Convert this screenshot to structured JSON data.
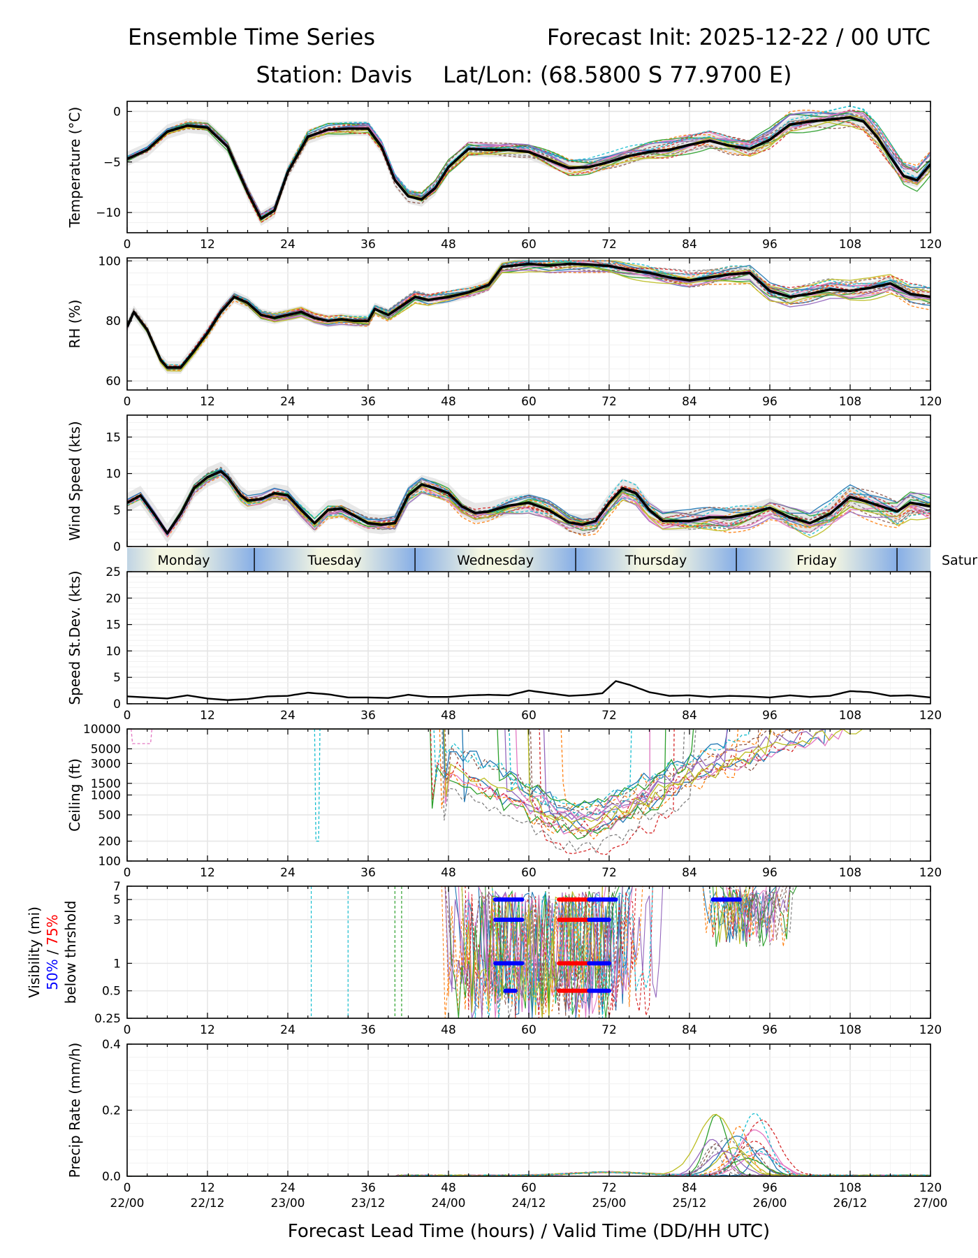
{
  "header": {
    "title_left": "Ensemble Time Series",
    "title_right": "Forecast Init: 2025-12-22 / 00 UTC",
    "station": "Station: Davis",
    "latlon": "Lat/Lon: (68.5800 S 77.9700 E)"
  },
  "xaxis": {
    "label": "Forecast Lead Time (hours) / Valid Time (DD/HH UTC)",
    "range": [
      0,
      120
    ],
    "ticks": [
      0,
      12,
      24,
      36,
      48,
      60,
      72,
      84,
      96,
      108,
      120
    ],
    "tick_labels": [
      "0",
      "12",
      "24",
      "36",
      "48",
      "60",
      "72",
      "84",
      "96",
      "108",
      "120"
    ],
    "valid_labels": [
      "22/00",
      "22/12",
      "23/00",
      "23/12",
      "24/00",
      "24/12",
      "25/00",
      "25/12",
      "26/00",
      "26/12",
      "27/00"
    ]
  },
  "day_bar": {
    "days": [
      "Monday",
      "Tuesday",
      "Wednesday",
      "Thursday",
      "Friday",
      "Saturday"
    ],
    "boundaries": [
      0,
      19,
      43,
      67,
      91,
      115,
      120
    ],
    "visible_last_label": "Satur"
  },
  "legend_colors": {
    "members": [
      "#1f77b4",
      "#ff7f0e",
      "#2ca02c",
      "#d62728",
      "#9467bd",
      "#8c564b",
      "#e377c2",
      "#7f7f7f",
      "#bcbd22",
      "#17becf"
    ],
    "mean": "#000000",
    "spread": "#d9d9d9",
    "threshold_50": "#0000ff",
    "threshold_75": "#ff0000"
  },
  "chart_data": [
    {
      "id": "temperature",
      "type": "line",
      "ylabel": "Temperature (°C)",
      "ylim": [
        -12,
        1
      ],
      "yticks": [
        -10,
        -5,
        0
      ],
      "ytick_labels": [
        "−10",
        "−5",
        "0"
      ],
      "grid": true,
      "mean": {
        "x": [
          0,
          3,
          6,
          9,
          12,
          15,
          18,
          20,
          22,
          24,
          27,
          30,
          33,
          36,
          38,
          40,
          42,
          44,
          46,
          48,
          51,
          54,
          57,
          60,
          63,
          66,
          69,
          72,
          75,
          78,
          81,
          84,
          87,
          90,
          93,
          96,
          99,
          102,
          105,
          108,
          110,
          112,
          114,
          116,
          118,
          120
        ],
        "y": [
          -4.7,
          -3.8,
          -2.0,
          -1.4,
          -1.6,
          -3.5,
          -8.0,
          -10.6,
          -9.8,
          -6.0,
          -2.5,
          -1.8,
          -1.7,
          -1.7,
          -3.5,
          -6.8,
          -8.4,
          -8.7,
          -7.6,
          -5.5,
          -3.7,
          -3.8,
          -3.8,
          -4.0,
          -4.8,
          -5.6,
          -5.5,
          -5.0,
          -4.4,
          -4.0,
          -3.8,
          -3.3,
          -2.9,
          -3.4,
          -3.7,
          -2.8,
          -1.3,
          -1.0,
          -0.8,
          -0.6,
          -1.0,
          -2.5,
          -4.5,
          -6.4,
          -6.8,
          -5.2
        ]
      },
      "members": 20,
      "member_spread": 1.2
    },
    {
      "id": "rh",
      "type": "line",
      "ylabel": "RH (%)",
      "ylim": [
        57,
        101
      ],
      "yticks": [
        60,
        80,
        100
      ],
      "ytick_labels": [
        "60",
        "80",
        "100"
      ],
      "grid": true,
      "mean": {
        "x": [
          0,
          1,
          3,
          5,
          6,
          8,
          10,
          12,
          14,
          16,
          18,
          20,
          22,
          24,
          26,
          28,
          30,
          32,
          34,
          36,
          37,
          39,
          41,
          43,
          45,
          48,
          51,
          54,
          56,
          60,
          63,
          66,
          69,
          72,
          75,
          78,
          81,
          84,
          87,
          90,
          93,
          96,
          99,
          102,
          105,
          108,
          111,
          114,
          117,
          120
        ],
        "y": [
          78,
          83,
          77,
          67,
          64.5,
          64.5,
          70,
          76,
          83,
          88,
          86,
          82,
          81,
          82,
          83,
          81,
          80,
          80.5,
          80,
          80,
          84,
          82,
          85,
          88,
          87,
          88,
          89.5,
          92,
          98,
          99,
          98.5,
          99,
          98.8,
          98.3,
          97,
          96,
          94.5,
          93.5,
          94.5,
          95.5,
          96,
          90,
          88,
          89,
          90.5,
          90,
          91,
          92.5,
          89,
          88
        ]
      },
      "members": 20,
      "member_spread": 3.5
    },
    {
      "id": "wind_speed",
      "type": "line",
      "ylabel": "Wind Speed (kts)",
      "ylim": [
        0,
        18
      ],
      "yticks": [
        0,
        5,
        10,
        15
      ],
      "ytick_labels": [
        "0",
        "5",
        "10",
        "15"
      ],
      "grid": true,
      "mean": {
        "x": [
          0,
          1,
          2,
          4,
          6,
          8,
          10,
          12,
          14,
          15,
          17,
          18,
          20,
          22,
          24,
          26,
          28,
          30,
          32,
          34,
          36,
          38,
          40,
          42,
          44,
          46,
          48,
          50,
          52,
          54,
          57,
          60,
          63,
          66,
          68,
          70,
          72,
          74,
          76,
          78,
          80,
          82,
          84,
          87,
          90,
          93,
          96,
          99,
          102,
          105,
          108,
          111,
          113,
          115,
          117,
          120
        ],
        "y": [
          6,
          6.5,
          7,
          4.5,
          1.8,
          4.5,
          8,
          9.5,
          10.3,
          9.5,
          7,
          6.3,
          6.5,
          7.3,
          7,
          5,
          3.2,
          5,
          5.2,
          4.2,
          3.2,
          3.0,
          3.2,
          7,
          8.5,
          8,
          7.3,
          5.5,
          4.6,
          4.8,
          5.6,
          6,
          5,
          3.3,
          3.0,
          3.5,
          6,
          8,
          7.3,
          5,
          3.5,
          3.5,
          3.5,
          4,
          4,
          4.5,
          5.3,
          4,
          3.2,
          4.5,
          6.8,
          6.0,
          5.4,
          4.8,
          6.0,
          5.5
        ]
      },
      "members": 20,
      "member_spread": 2.2
    },
    {
      "id": "speed_stdev",
      "type": "line",
      "ylabel": "Speed St.Dev. (kts)",
      "ylim": [
        0,
        25
      ],
      "yticks": [
        0,
        5,
        10,
        15,
        20,
        25
      ],
      "ytick_labels": [
        "0",
        "5",
        "10",
        "15",
        "20",
        "25"
      ],
      "grid": true,
      "mean": {
        "x": [
          0,
          3,
          6,
          9,
          12,
          15,
          18,
          21,
          24,
          27,
          30,
          33,
          36,
          39,
          42,
          45,
          48,
          51,
          54,
          57,
          60,
          63,
          66,
          69,
          71,
          73,
          75,
          78,
          81,
          84,
          87,
          90,
          93,
          96,
          99,
          102,
          105,
          108,
          111,
          114,
          117,
          120
        ],
        "y": [
          1.4,
          1.2,
          1.0,
          1.6,
          1.0,
          0.7,
          0.9,
          1.4,
          1.5,
          2.1,
          1.8,
          1.2,
          1.2,
          1.1,
          1.7,
          1.3,
          1.3,
          1.6,
          1.7,
          1.6,
          2.5,
          2.0,
          1.5,
          1.7,
          2.0,
          4.3,
          3.6,
          2.2,
          1.5,
          1.6,
          1.3,
          1.5,
          1.4,
          1.2,
          1.6,
          1.3,
          1.5,
          2.4,
          2.2,
          1.5,
          1.6,
          1.2
        ]
      }
    },
    {
      "id": "ceiling",
      "type": "line",
      "ylabel": "Ceiling (ft)",
      "scale": "log",
      "ylim": [
        100,
        10000
      ],
      "yticks": [
        100,
        200,
        500,
        1000,
        1500,
        3000,
        5000,
        10000
      ],
      "ytick_labels": [
        "100",
        "200",
        "500",
        "1000",
        "1500",
        "3000",
        "5000",
        "10000"
      ],
      "grid": true,
      "members": 20
    },
    {
      "id": "visibility",
      "type": "line",
      "ylabel": "Visibility (mi)",
      "ylabel_50": "50%",
      "ylabel_sep": " / ",
      "ylabel_75": "75%",
      "ylabel_sub": "below thrshold",
      "scale": "log",
      "ylim": [
        0.25,
        7
      ],
      "yticks": [
        0.25,
        0.5,
        1,
        3,
        5,
        7
      ],
      "ytick_labels": [
        "0.25",
        "0.5",
        "1",
        "3",
        "5",
        "7"
      ],
      "grid": true,
      "members": 20,
      "threshold_bars": [
        {
          "level": 5,
          "pct": 50,
          "from": 55,
          "to": 59
        },
        {
          "level": 3,
          "pct": 50,
          "from": 55,
          "to": 59
        },
        {
          "level": 1,
          "pct": 50,
          "from": 55,
          "to": 59
        },
        {
          "level": 0.5,
          "pct": 50,
          "from": 56.5,
          "to": 58
        },
        {
          "level": 5,
          "pct": 75,
          "from": 64.5,
          "to": 69
        },
        {
          "level": 5,
          "pct": 50,
          "from": 69,
          "to": 73
        },
        {
          "level": 3,
          "pct": 75,
          "from": 64.5,
          "to": 69
        },
        {
          "level": 3,
          "pct": 50,
          "from": 69,
          "to": 72
        },
        {
          "level": 1,
          "pct": 75,
          "from": 64.5,
          "to": 69
        },
        {
          "level": 1,
          "pct": 50,
          "from": 69,
          "to": 72
        },
        {
          "level": 0.5,
          "pct": 75,
          "from": 64.5,
          "to": 69
        },
        {
          "level": 0.5,
          "pct": 50,
          "from": 69,
          "to": 72
        },
        {
          "level": 5,
          "pct": 50,
          "from": 87.5,
          "to": 91.5
        }
      ]
    },
    {
      "id": "precip",
      "type": "line",
      "ylabel": "Precip Rate (mm/h)",
      "ylim": [
        0,
        0.4
      ],
      "yticks": [
        0.0,
        0.2,
        0.4
      ],
      "ytick_labels": [
        "0.0",
        "0.2",
        "0.4"
      ],
      "grid": true,
      "members": 20,
      "peak_region": [
        85,
        98
      ]
    }
  ]
}
